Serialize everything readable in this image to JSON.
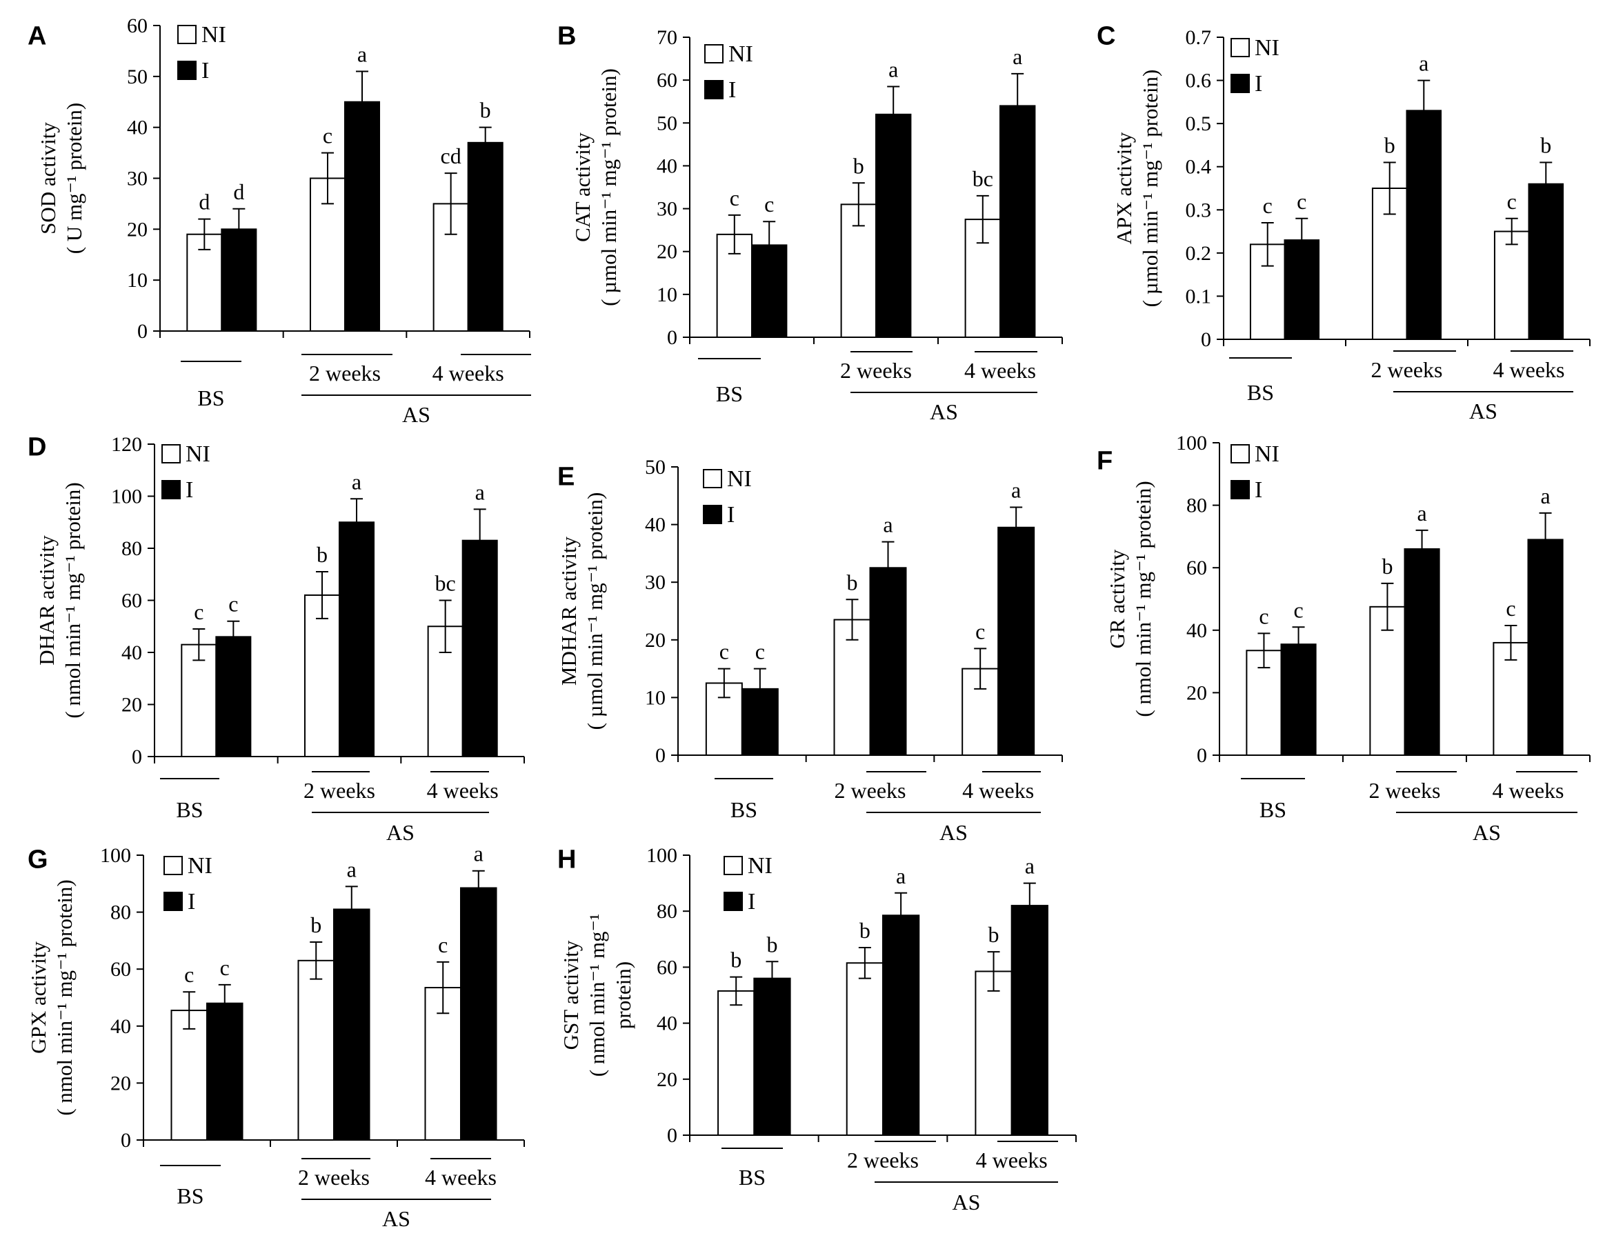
{
  "figure_title": "",
  "chart_data": [
    {
      "type": "bar",
      "panel": "A",
      "ylabel_lines": [
        "SOD activity",
        "( U mg⁻¹ protein)"
      ],
      "ylim": [
        0,
        60
      ],
      "yticks": [
        0,
        10,
        20,
        30,
        40,
        50,
        60
      ],
      "categories": [
        "BS",
        "2 weeks",
        "4 weeks"
      ],
      "group_label": "AS",
      "legend": [
        "NI",
        "I"
      ],
      "series": [
        {
          "name": "NI",
          "values": [
            19,
            30,
            25
          ],
          "errors": [
            3,
            5,
            6
          ],
          "letters": [
            "d",
            "c",
            "cd"
          ]
        },
        {
          "name": "I",
          "values": [
            20,
            45,
            37
          ],
          "errors": [
            4,
            6,
            3
          ],
          "letters": [
            "d",
            "a",
            "b"
          ]
        }
      ]
    },
    {
      "type": "bar",
      "panel": "B",
      "ylabel_lines": [
        "CAT activity",
        "( µmol min⁻¹ mg⁻¹ protein)"
      ],
      "ylim": [
        0,
        70
      ],
      "yticks": [
        0,
        10,
        20,
        30,
        40,
        50,
        60,
        70
      ],
      "categories": [
        "BS",
        "2 weeks",
        "4 weeks"
      ],
      "group_label": "AS",
      "legend": [
        "NI",
        "I"
      ],
      "series": [
        {
          "name": "NI",
          "values": [
            24,
            31,
            27.5
          ],
          "errors": [
            4.5,
            5,
            5.5
          ],
          "letters": [
            "c",
            "b",
            "bc"
          ]
        },
        {
          "name": "I",
          "values": [
            21.5,
            52,
            54
          ],
          "errors": [
            5.5,
            6.5,
            7.5
          ],
          "letters": [
            "c",
            "a",
            "a"
          ]
        }
      ]
    },
    {
      "type": "bar",
      "panel": "C",
      "ylabel_lines": [
        "APX activity",
        "( µmol min⁻¹ mg⁻¹ protein)"
      ],
      "ylim": [
        0,
        0.7
      ],
      "yticks": [
        0,
        0.1,
        0.2,
        0.3,
        0.4,
        0.5,
        0.6,
        0.7
      ],
      "categories": [
        "BS",
        "2 weeks",
        "4 weeks"
      ],
      "group_label": "AS",
      "legend": [
        "NI",
        "I"
      ],
      "series": [
        {
          "name": "NI",
          "values": [
            0.22,
            0.35,
            0.25
          ],
          "errors": [
            0.05,
            0.06,
            0.03
          ],
          "letters": [
            "c",
            "b",
            "c"
          ]
        },
        {
          "name": "I",
          "values": [
            0.23,
            0.53,
            0.36
          ],
          "errors": [
            0.05,
            0.07,
            0.05
          ],
          "letters": [
            "c",
            "a",
            "b"
          ]
        }
      ]
    },
    {
      "type": "bar",
      "panel": "D",
      "ylabel_lines": [
        "DHAR activity",
        "( nmol min⁻¹ mg⁻¹ protein)"
      ],
      "ylim": [
        0,
        120
      ],
      "yticks": [
        0,
        20,
        40,
        60,
        80,
        100,
        120
      ],
      "categories": [
        "BS",
        "2 weeks",
        "4 weeks"
      ],
      "group_label": "AS",
      "legend": [
        "NI",
        "I"
      ],
      "series": [
        {
          "name": "NI",
          "values": [
            43,
            62,
            50
          ],
          "errors": [
            6,
            9,
            10
          ],
          "letters": [
            "c",
            "b",
            "bc"
          ]
        },
        {
          "name": "I",
          "values": [
            46,
            90,
            83
          ],
          "errors": [
            6,
            9,
            12
          ],
          "letters": [
            "c",
            "a",
            "a"
          ]
        }
      ]
    },
    {
      "type": "bar",
      "panel": "E",
      "ylabel_lines": [
        "MDHAR activity",
        "( µmol min⁻¹ mg⁻¹ protein)"
      ],
      "ylim": [
        0,
        50
      ],
      "yticks": [
        0,
        10,
        20,
        30,
        40,
        50
      ],
      "categories": [
        "BS",
        "2 weeks",
        "4 weeks"
      ],
      "group_label": "AS",
      "legend": [
        "NI",
        "I"
      ],
      "series": [
        {
          "name": "NI",
          "values": [
            12.5,
            23.5,
            15
          ],
          "errors": [
            2.5,
            3.5,
            3.5
          ],
          "letters": [
            "c",
            "b",
            "c"
          ]
        },
        {
          "name": "I",
          "values": [
            11.5,
            32.5,
            39.5
          ],
          "errors": [
            3.5,
            4.5,
            3.5
          ],
          "letters": [
            "c",
            "a",
            "a"
          ]
        }
      ]
    },
    {
      "type": "bar",
      "panel": "F",
      "ylabel_lines": [
        "GR activity",
        "( nmol min⁻¹ mg⁻¹ protein)"
      ],
      "ylim": [
        0,
        100
      ],
      "yticks": [
        0,
        20,
        40,
        60,
        80,
        100
      ],
      "categories": [
        "BS",
        "2 weeks",
        "4 weeks"
      ],
      "group_label": "AS",
      "legend": [
        "NI",
        "I"
      ],
      "series": [
        {
          "name": "NI",
          "values": [
            33.5,
            47.5,
            36
          ],
          "errors": [
            5.5,
            7.5,
            5.5
          ],
          "letters": [
            "c",
            "b",
            "c"
          ]
        },
        {
          "name": "I",
          "values": [
            35.5,
            66,
            69
          ],
          "errors": [
            5.5,
            6,
            8.5
          ],
          "letters": [
            "c",
            "a",
            "a"
          ]
        }
      ]
    },
    {
      "type": "bar",
      "panel": "G",
      "ylabel_lines": [
        "GPX activity",
        "( nmol min⁻¹ mg⁻¹ protein)"
      ],
      "ylim": [
        0,
        100
      ],
      "yticks": [
        0,
        20,
        40,
        60,
        80,
        100
      ],
      "categories": [
        "BS",
        "2 weeks",
        "4 weeks"
      ],
      "group_label": "AS",
      "legend": [
        "NI",
        "I"
      ],
      "series": [
        {
          "name": "NI",
          "values": [
            45.5,
            63,
            53.5
          ],
          "errors": [
            6.5,
            6.5,
            9
          ],
          "letters": [
            "c",
            "b",
            "c"
          ]
        },
        {
          "name": "I",
          "values": [
            48,
            81,
            88.5
          ],
          "errors": [
            6.5,
            8,
            6
          ],
          "letters": [
            "c",
            "a",
            "a"
          ]
        }
      ]
    },
    {
      "type": "bar",
      "panel": "H",
      "ylabel_lines": [
        "GST activity",
        "( nmol min⁻¹ mg⁻¹",
        "protein)"
      ],
      "ylim": [
        0,
        100
      ],
      "yticks": [
        0,
        20,
        40,
        60,
        80,
        100
      ],
      "categories": [
        "BS",
        "2 weeks",
        "4 weeks"
      ],
      "group_label": "AS",
      "legend": [
        "NI",
        "I"
      ],
      "series": [
        {
          "name": "NI",
          "values": [
            51.5,
            61.5,
            58.5
          ],
          "errors": [
            5,
            5.5,
            7
          ],
          "letters": [
            "b",
            "b",
            "b"
          ]
        },
        {
          "name": "I",
          "values": [
            56,
            78.5,
            82
          ],
          "errors": [
            6,
            8,
            8
          ],
          "letters": [
            "b",
            "a",
            "a"
          ]
        }
      ]
    }
  ]
}
